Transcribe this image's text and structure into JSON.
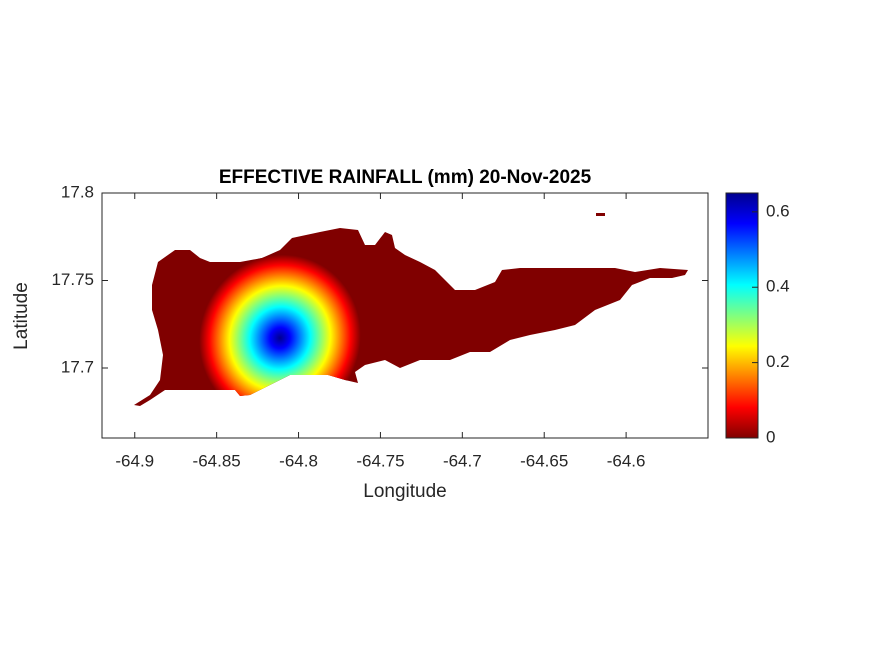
{
  "chart_data": {
    "type": "map",
    "title": "EFFECTIVE RAINFALL (mm) 20-Nov-2025",
    "x_label": "Longitude",
    "y_label": "Latitude",
    "xlim": [
      -64.92,
      -64.55
    ],
    "xticks": [
      -64.9,
      -64.85,
      -64.8,
      -64.75,
      -64.7,
      -64.65,
      -64.6
    ],
    "ylim": [
      17.66,
      17.8
    ],
    "yticks": [
      17.7,
      17.75,
      17.8
    ],
    "colormap": "jet",
    "clim": [
      0,
      0.65
    ],
    "cticks": [
      0,
      0.2,
      0.4,
      0.6
    ]
  }
}
